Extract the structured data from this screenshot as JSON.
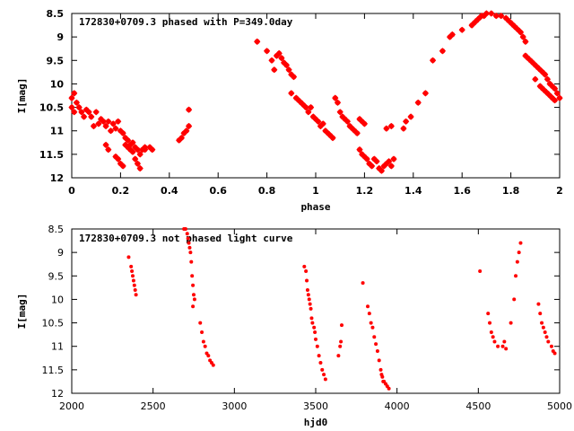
{
  "chart_data": [
    {
      "type": "scatter",
      "title": "172830+0709.3 phased with P=349.0day",
      "xlabel": "phase",
      "ylabel": "I[mag]",
      "xlim": [
        0,
        2
      ],
      "ylim": [
        8.5,
        12
      ],
      "y_inverted": true,
      "x_ticks": [
        0,
        0.2,
        0.4,
        0.6,
        0.8,
        1,
        1.2,
        1.4,
        1.6,
        1.8,
        2
      ],
      "x_tick_labels": [
        "0",
        "0.2",
        "0.4",
        "0.6",
        "0.8",
        "1",
        "1.2",
        "1.4",
        "1.6",
        "1.8",
        "2"
      ],
      "y_ticks": [
        8.5,
        9,
        9.5,
        10,
        10.5,
        11,
        11.5,
        12
      ],
      "y_tick_labels": [
        "8.5",
        "9",
        "9.5",
        "10",
        "10.5",
        "11",
        "11.5",
        "12"
      ],
      "marker": "star",
      "color": "#ff0000",
      "points": [
        [
          0.0,
          10.3
        ],
        [
          0.0,
          10.5
        ],
        [
          0.01,
          10.2
        ],
        [
          0.01,
          10.6
        ],
        [
          0.02,
          10.4
        ],
        [
          0.03,
          10.5
        ],
        [
          0.04,
          10.6
        ],
        [
          0.05,
          10.7
        ],
        [
          0.06,
          10.55
        ],
        [
          0.07,
          10.6
        ],
        [
          0.08,
          10.7
        ],
        [
          0.09,
          10.9
        ],
        [
          0.1,
          10.6
        ],
        [
          0.11,
          10.85
        ],
        [
          0.12,
          10.75
        ],
        [
          0.13,
          10.8
        ],
        [
          0.14,
          10.9
        ],
        [
          0.15,
          10.8
        ],
        [
          0.16,
          11.0
        ],
        [
          0.17,
          10.85
        ],
        [
          0.18,
          10.95
        ],
        [
          0.19,
          10.8
        ],
        [
          0.2,
          11.0
        ],
        [
          0.21,
          11.05
        ],
        [
          0.22,
          11.15
        ],
        [
          0.23,
          11.2
        ],
        [
          0.24,
          11.3
        ],
        [
          0.25,
          11.25
        ],
        [
          0.26,
          11.35
        ],
        [
          0.27,
          11.4
        ],
        [
          0.28,
          11.5
        ],
        [
          0.29,
          11.4
        ],
        [
          0.3,
          11.35
        ],
        [
          0.14,
          11.3
        ],
        [
          0.15,
          11.4
        ],
        [
          0.18,
          11.55
        ],
        [
          0.19,
          11.6
        ],
        [
          0.2,
          11.7
        ],
        [
          0.21,
          11.75
        ],
        [
          0.22,
          11.3
        ],
        [
          0.23,
          11.35
        ],
        [
          0.24,
          11.4
        ],
        [
          0.25,
          11.45
        ],
        [
          0.26,
          11.6
        ],
        [
          0.27,
          11.7
        ],
        [
          0.28,
          11.8
        ],
        [
          0.3,
          11.4
        ],
        [
          0.32,
          11.35
        ],
        [
          0.33,
          11.4
        ],
        [
          0.44,
          11.2
        ],
        [
          0.45,
          11.15
        ],
        [
          0.46,
          11.05
        ],
        [
          0.47,
          11.0
        ],
        [
          0.48,
          10.9
        ],
        [
          0.48,
          10.55
        ],
        [
          0.76,
          9.1
        ],
        [
          0.8,
          9.3
        ],
        [
          0.82,
          9.5
        ],
        [
          0.83,
          9.7
        ],
        [
          0.84,
          9.4
        ],
        [
          0.85,
          9.35
        ],
        [
          0.86,
          9.45
        ],
        [
          0.87,
          9.55
        ],
        [
          0.88,
          9.6
        ],
        [
          0.89,
          9.7
        ],
        [
          0.9,
          9.8
        ],
        [
          0.91,
          9.85
        ],
        [
          0.9,
          10.2
        ],
        [
          0.92,
          10.3
        ],
        [
          0.93,
          10.35
        ],
        [
          0.94,
          10.4
        ],
        [
          0.95,
          10.45
        ],
        [
          0.96,
          10.5
        ],
        [
          0.97,
          10.6
        ],
        [
          0.98,
          10.5
        ],
        [
          0.99,
          10.7
        ],
        [
          1.0,
          10.75
        ],
        [
          1.01,
          10.8
        ],
        [
          1.02,
          10.9
        ],
        [
          1.03,
          10.85
        ],
        [
          1.04,
          11.0
        ],
        [
          1.05,
          11.05
        ],
        [
          1.06,
          11.1
        ],
        [
          1.07,
          11.15
        ],
        [
          1.08,
          10.3
        ],
        [
          1.09,
          10.4
        ],
        [
          1.1,
          10.6
        ],
        [
          1.11,
          10.7
        ],
        [
          1.12,
          10.75
        ],
        [
          1.13,
          10.8
        ],
        [
          1.14,
          10.9
        ],
        [
          1.15,
          10.95
        ],
        [
          1.16,
          11.0
        ],
        [
          1.17,
          11.05
        ],
        [
          1.18,
          10.75
        ],
        [
          1.19,
          10.8
        ],
        [
          1.2,
          10.85
        ],
        [
          1.18,
          11.4
        ],
        [
          1.19,
          11.5
        ],
        [
          1.2,
          11.55
        ],
        [
          1.21,
          11.6
        ],
        [
          1.22,
          11.7
        ],
        [
          1.23,
          11.75
        ],
        [
          1.24,
          11.6
        ],
        [
          1.25,
          11.65
        ],
        [
          1.26,
          11.8
        ],
        [
          1.27,
          11.85
        ],
        [
          1.28,
          11.75
        ],
        [
          1.29,
          11.7
        ],
        [
          1.3,
          11.65
        ],
        [
          1.31,
          11.75
        ],
        [
          1.32,
          11.6
        ],
        [
          1.29,
          10.95
        ],
        [
          1.31,
          10.9
        ],
        [
          1.36,
          10.95
        ],
        [
          1.37,
          10.8
        ],
        [
          1.39,
          10.7
        ],
        [
          1.42,
          10.4
        ],
        [
          1.45,
          10.2
        ],
        [
          1.48,
          9.5
        ],
        [
          1.52,
          9.3
        ],
        [
          1.55,
          9.0
        ],
        [
          1.56,
          8.95
        ],
        [
          1.6,
          8.85
        ],
        [
          1.64,
          8.75
        ],
        [
          1.65,
          8.7
        ],
        [
          1.66,
          8.65
        ],
        [
          1.67,
          8.6
        ],
        [
          1.68,
          8.55
        ],
        [
          1.69,
          8.55
        ],
        [
          1.7,
          8.5
        ],
        [
          1.72,
          8.5
        ],
        [
          1.74,
          8.55
        ],
        [
          1.76,
          8.55
        ],
        [
          1.78,
          8.6
        ],
        [
          1.79,
          8.65
        ],
        [
          1.8,
          8.7
        ],
        [
          1.81,
          8.75
        ],
        [
          1.82,
          8.8
        ],
        [
          1.83,
          8.85
        ],
        [
          1.84,
          8.9
        ],
        [
          1.85,
          9.0
        ],
        [
          1.86,
          9.1
        ],
        [
          1.86,
          9.4
        ],
        [
          1.87,
          9.45
        ],
        [
          1.88,
          9.5
        ],
        [
          1.89,
          9.55
        ],
        [
          1.9,
          9.6
        ],
        [
          1.91,
          9.65
        ],
        [
          1.92,
          9.7
        ],
        [
          1.93,
          9.75
        ],
        [
          1.94,
          9.8
        ],
        [
          1.95,
          9.9
        ],
        [
          1.96,
          10.0
        ],
        [
          1.97,
          10.05
        ],
        [
          1.98,
          10.1
        ],
        [
          1.99,
          10.2
        ],
        [
          2.0,
          10.3
        ],
        [
          1.9,
          9.9
        ],
        [
          1.92,
          10.05
        ],
        [
          1.93,
          10.1
        ],
        [
          1.94,
          10.15
        ],
        [
          1.95,
          10.2
        ],
        [
          1.96,
          10.25
        ],
        [
          1.97,
          10.3
        ],
        [
          1.98,
          10.35
        ]
      ]
    },
    {
      "type": "scatter",
      "title": "172830+0709.3 not phased light curve",
      "xlabel": "hjd0",
      "ylabel": "I[mag]",
      "xlim": [
        2000,
        5000
      ],
      "ylim": [
        8.5,
        12
      ],
      "y_inverted": true,
      "x_ticks": [
        2000,
        2500,
        3000,
        3500,
        4000,
        4500,
        5000
      ],
      "x_tick_labels": [
        "2000",
        "2500",
        "3000",
        "3500",
        "4000",
        "4500",
        "5000"
      ],
      "y_ticks": [
        8.5,
        9,
        9.5,
        10,
        10.5,
        11,
        11.5,
        12
      ],
      "y_tick_labels": [
        "8.5",
        "9",
        "9.5",
        "10",
        "10.5",
        "11",
        "11.5",
        "12"
      ],
      "marker": "dot",
      "color": "#ff0000",
      "points": [
        [
          2350,
          9.1
        ],
        [
          2365,
          9.3
        ],
        [
          2370,
          9.4
        ],
        [
          2375,
          9.5
        ],
        [
          2380,
          9.6
        ],
        [
          2385,
          9.7
        ],
        [
          2390,
          9.8
        ],
        [
          2395,
          9.9
        ],
        [
          2690,
          8.5
        ],
        [
          2700,
          8.5
        ],
        [
          2710,
          8.6
        ],
        [
          2715,
          8.7
        ],
        [
          2720,
          8.8
        ],
        [
          2725,
          8.9
        ],
        [
          2730,
          9.0
        ],
        [
          2735,
          9.2
        ],
        [
          2740,
          9.5
        ],
        [
          2745,
          9.7
        ],
        [
          2750,
          9.9
        ],
        [
          2755,
          10.0
        ],
        [
          2745,
          10.15
        ],
        [
          2790,
          10.5
        ],
        [
          2800,
          10.7
        ],
        [
          2810,
          10.9
        ],
        [
          2820,
          11.0
        ],
        [
          2830,
          11.15
        ],
        [
          2840,
          11.2
        ],
        [
          2850,
          11.3
        ],
        [
          2860,
          11.35
        ],
        [
          2870,
          11.4
        ],
        [
          3430,
          9.3
        ],
        [
          3440,
          9.4
        ],
        [
          3445,
          9.6
        ],
        [
          3450,
          9.8
        ],
        [
          3455,
          9.9
        ],
        [
          3460,
          10.0
        ],
        [
          3465,
          10.1
        ],
        [
          3470,
          10.2
        ],
        [
          3475,
          10.4
        ],
        [
          3480,
          10.5
        ],
        [
          3490,
          10.6
        ],
        [
          3495,
          10.7
        ],
        [
          3500,
          10.85
        ],
        [
          3510,
          11.0
        ],
        [
          3520,
          11.2
        ],
        [
          3530,
          11.35
        ],
        [
          3540,
          11.5
        ],
        [
          3550,
          11.6
        ],
        [
          3560,
          11.7
        ],
        [
          3640,
          11.2
        ],
        [
          3650,
          11.0
        ],
        [
          3655,
          10.9
        ],
        [
          3660,
          10.55
        ],
        [
          3790,
          9.65
        ],
        [
          3820,
          10.15
        ],
        [
          3830,
          10.3
        ],
        [
          3840,
          10.5
        ],
        [
          3850,
          10.6
        ],
        [
          3860,
          10.8
        ],
        [
          3870,
          10.95
        ],
        [
          3880,
          11.1
        ],
        [
          3890,
          11.3
        ],
        [
          3900,
          11.5
        ],
        [
          3910,
          11.65
        ],
        [
          3920,
          11.75
        ],
        [
          3930,
          11.8
        ],
        [
          3940,
          11.85
        ],
        [
          3950,
          11.9
        ],
        [
          3905,
          11.6
        ],
        [
          3915,
          11.75
        ],
        [
          4510,
          9.4
        ],
        [
          4560,
          10.3
        ],
        [
          4570,
          10.5
        ],
        [
          4580,
          10.7
        ],
        [
          4590,
          10.8
        ],
        [
          4600,
          10.9
        ],
        [
          4620,
          11.0
        ],
        [
          4650,
          11.0
        ],
        [
          4660,
          10.9
        ],
        [
          4670,
          11.05
        ],
        [
          4700,
          10.5
        ],
        [
          4720,
          10.0
        ],
        [
          4730,
          9.5
        ],
        [
          4740,
          9.2
        ],
        [
          4750,
          9.0
        ],
        [
          4760,
          8.8
        ],
        [
          4870,
          10.1
        ],
        [
          4880,
          10.3
        ],
        [
          4890,
          10.5
        ],
        [
          4900,
          10.6
        ],
        [
          4910,
          10.7
        ],
        [
          4920,
          10.8
        ],
        [
          4930,
          10.9
        ],
        [
          4950,
          11.0
        ],
        [
          4960,
          11.1
        ],
        [
          4970,
          11.15
        ]
      ]
    }
  ]
}
